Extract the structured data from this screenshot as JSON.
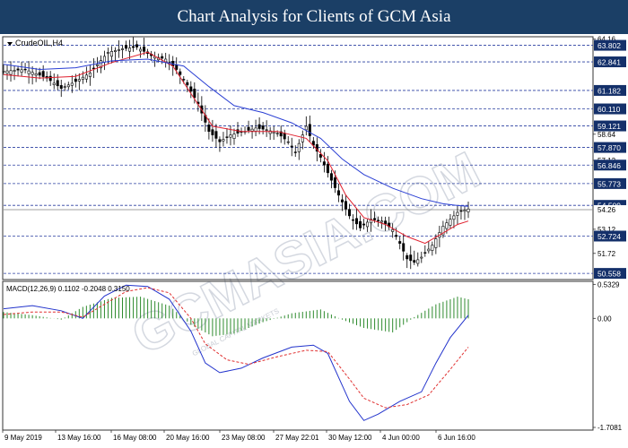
{
  "banner": {
    "title": "Chart Analysis for Clients of GCM Asia"
  },
  "watermark": {
    "text": "GCMASIA.COM",
    "subtext": "GLOBAL CAPITAL MARKETS"
  },
  "colors": {
    "ma_fast": "#e0202e",
    "ma_slow": "#2a3fd4",
    "macd_hist": "#2e8b2e",
    "macd_line": "#2233cc",
    "signal_line": "#e03030",
    "grid_dash": "#2a3fa0",
    "banner": "#1b3f66"
  },
  "chart_data": [
    {
      "type": "candlestick",
      "title": "CrudeOIL,H4",
      "xlabel": "",
      "ylabel": "",
      "ylim": [
        50.2,
        64.3
      ],
      "x_ticks": [
        "9 May 2019",
        "13 May 16:00",
        "16 May 08:00",
        "20 May 16:00",
        "23 May 08:00",
        "27 May 22:01",
        "30 May 12:00",
        "4 Jun 00:00",
        "6 Jun 16:00"
      ],
      "y_ticks": [
        64.16,
        58.64,
        57.12,
        53.12,
        51.72
      ],
      "levels": [
        63.802,
        62.841,
        61.182,
        60.11,
        59.121,
        57.87,
        56.846,
        55.773,
        54.509,
        52.724,
        50.558
      ],
      "current_price": 54.26,
      "close_path": [
        [
          0,
          62.3
        ],
        [
          6,
          62.4
        ],
        [
          12,
          61.9
        ],
        [
          16,
          61.3
        ],
        [
          20,
          61.7
        ],
        [
          24,
          62.2
        ],
        [
          29,
          63.4
        ],
        [
          33,
          63.6
        ],
        [
          37,
          63.7
        ],
        [
          41,
          63.2
        ],
        [
          45,
          63.0
        ],
        [
          48,
          62.4
        ],
        [
          51,
          61.5
        ],
        [
          54,
          60.4
        ],
        [
          57,
          58.8
        ],
        [
          60,
          58.2
        ],
        [
          63,
          58.6
        ],
        [
          67,
          58.8
        ],
        [
          70,
          59.0
        ],
        [
          73,
          58.9
        ],
        [
          76,
          58.7
        ],
        [
          79,
          58.2
        ],
        [
          81,
          57.6
        ],
        [
          84,
          59.1
        ],
        [
          86,
          58.0
        ],
        [
          88,
          57.3
        ],
        [
          90,
          56.4
        ],
        [
          93,
          55.1
        ],
        [
          96,
          53.9
        ],
        [
          99,
          53.2
        ],
        [
          102,
          53.7
        ],
        [
          105,
          53.6
        ],
        [
          108,
          53.1
        ],
        [
          110,
          52.3
        ],
        [
          112,
          51.4
        ],
        [
          114,
          51.2
        ],
        [
          116,
          51.5
        ],
        [
          119,
          52.2
        ],
        [
          122,
          53.3
        ],
        [
          126,
          54.1
        ],
        [
          129,
          54.3
        ]
      ],
      "series": [
        {
          "name": "",
          "style": "ma_fast",
          "points": [
            [
              0,
              62.1
            ],
            [
              10,
              61.9
            ],
            [
              20,
              62.0
            ],
            [
              30,
              62.8
            ],
            [
              40,
              63.4
            ],
            [
              47,
              62.6
            ],
            [
              52,
              61.0
            ],
            [
              58,
              59.1
            ],
            [
              66,
              58.8
            ],
            [
              76,
              58.8
            ],
            [
              84,
              58.4
            ],
            [
              90,
              57.1
            ],
            [
              95,
              55.1
            ],
            [
              100,
              53.8
            ],
            [
              106,
              53.4
            ],
            [
              112,
              52.7
            ],
            [
              117,
              52.3
            ],
            [
              122,
              52.9
            ],
            [
              126,
              53.4
            ],
            [
              129,
              53.6
            ]
          ]
        },
        {
          "name": "",
          "style": "ma_slow",
          "points": [
            [
              0,
              62.7
            ],
            [
              10,
              62.4
            ],
            [
              20,
              62.5
            ],
            [
              30,
              62.9
            ],
            [
              40,
              63.0
            ],
            [
              50,
              62.6
            ],
            [
              57,
              61.4
            ],
            [
              64,
              60.3
            ],
            [
              72,
              59.9
            ],
            [
              80,
              59.3
            ],
            [
              88,
              58.4
            ],
            [
              94,
              57.2
            ],
            [
              100,
              56.3
            ],
            [
              108,
              55.5
            ],
            [
              116,
              54.9
            ],
            [
              122,
              54.6
            ],
            [
              126,
              54.5
            ],
            [
              129,
              54.45
            ]
          ]
        }
      ]
    },
    {
      "type": "line",
      "title": "MACD(12,26,9) 0.1102 -0.2048 0.3150",
      "xlabel": "",
      "ylabel": "",
      "ylim": [
        -1.75,
        0.58
      ],
      "y_ticks": [
        0.5329,
        0.0,
        -1.7081
      ],
      "histogram": [
        [
          0,
          0.1
        ],
        [
          8,
          0.05
        ],
        [
          16,
          -0.02
        ],
        [
          22,
          0.18
        ],
        [
          30,
          0.32
        ],
        [
          38,
          0.34
        ],
        [
          46,
          0.2
        ],
        [
          52,
          -0.1
        ],
        [
          58,
          -0.28
        ],
        [
          64,
          -0.24
        ],
        [
          72,
          -0.06
        ],
        [
          80,
          0.08
        ],
        [
          88,
          0.14
        ],
        [
          94,
          -0.02
        ],
        [
          100,
          -0.15
        ],
        [
          108,
          -0.22
        ],
        [
          114,
          0.02
        ],
        [
          120,
          0.22
        ],
        [
          126,
          0.34
        ],
        [
          129,
          0.3
        ]
      ],
      "series": [
        {
          "name": "",
          "style": "macd_line",
          "points": [
            [
              0,
              0.15
            ],
            [
              8,
              0.2
            ],
            [
              16,
              0.12
            ],
            [
              22,
              0.0
            ],
            [
              28,
              0.35
            ],
            [
              34,
              0.52
            ],
            [
              40,
              0.5
            ],
            [
              46,
              0.3
            ],
            [
              52,
              -0.2
            ],
            [
              56,
              -0.7
            ],
            [
              60,
              -0.85
            ],
            [
              66,
              -0.78
            ],
            [
              72,
              -0.62
            ],
            [
              80,
              -0.45
            ],
            [
              86,
              -0.42
            ],
            [
              90,
              -0.55
            ],
            [
              96,
              -1.3
            ],
            [
              100,
              -1.6
            ],
            [
              104,
              -1.5
            ],
            [
              110,
              -1.3
            ],
            [
              116,
              -1.15
            ],
            [
              120,
              -0.7
            ],
            [
              124,
              -0.3
            ],
            [
              129,
              0.05
            ]
          ]
        },
        {
          "name": "",
          "style": "signal_line",
          "points": [
            [
              0,
              0.06
            ],
            [
              8,
              0.1
            ],
            [
              16,
              0.1
            ],
            [
              22,
              0.02
            ],
            [
              28,
              0.22
            ],
            [
              34,
              0.42
            ],
            [
              40,
              0.48
            ],
            [
              46,
              0.4
            ],
            [
              52,
              0.0
            ],
            [
              56,
              -0.4
            ],
            [
              62,
              -0.65
            ],
            [
              68,
              -0.72
            ],
            [
              76,
              -0.6
            ],
            [
              84,
              -0.5
            ],
            [
              90,
              -0.52
            ],
            [
              96,
              -0.95
            ],
            [
              100,
              -1.25
            ],
            [
              106,
              -1.4
            ],
            [
              112,
              -1.35
            ],
            [
              118,
              -1.2
            ],
            [
              124,
              -0.8
            ],
            [
              129,
              -0.45
            ]
          ]
        }
      ]
    }
  ]
}
